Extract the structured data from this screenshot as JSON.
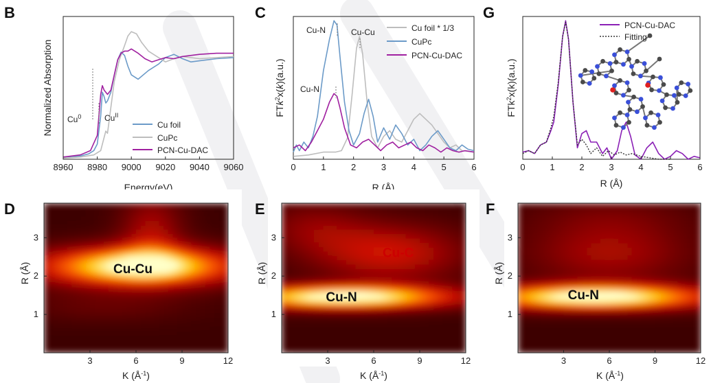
{
  "colors": {
    "cu_foil": "#6b9ac8",
    "cupc": "#bdbdbd",
    "pcn": "#a020a0",
    "pcn_g": "#8a1fb5",
    "fit": "#333333"
  },
  "chart_data": [
    {
      "id": "B",
      "panel_letter": "B",
      "type": "line",
      "xlabel": "Energy(eV)",
      "ylabel": "Normalized Absorption",
      "xlim": [
        8960,
        9060
      ],
      "ylim": [
        0,
        1.32
      ],
      "xticks": [
        "8960",
        "8980",
        "9000",
        "9020",
        "9040",
        "9060"
      ],
      "legend": [
        "Cu foil",
        "CuPc",
        "PCN-Cu-DAC"
      ],
      "legend_position": "lower-right",
      "annotations": [
        {
          "base": "Cu",
          "sup": "0"
        },
        {
          "base": "Cu",
          "sup": "II"
        }
      ],
      "series": [
        {
          "name": "Cu foil",
          "color": "#6b9ac8",
          "x": [
            8960,
            8970,
            8975,
            8978,
            8980,
            8982,
            8983,
            8984,
            8985,
            8986,
            8988,
            8990,
            8992,
            8994,
            8996,
            8998,
            9000,
            9004,
            9010,
            9016,
            9020,
            9025,
            9030,
            9035,
            9040,
            9050,
            9060
          ],
          "y": [
            0.02,
            0.03,
            0.05,
            0.08,
            0.14,
            0.4,
            0.62,
            0.58,
            0.52,
            0.54,
            0.62,
            0.78,
            0.92,
            0.99,
            0.96,
            0.86,
            0.78,
            0.74,
            0.82,
            0.88,
            0.94,
            0.97,
            0.93,
            0.9,
            0.91,
            0.93,
            0.94
          ]
        },
        {
          "name": "CuPc",
          "color": "#bdbdbd",
          "x": [
            8960,
            8970,
            8978,
            8982,
            8984,
            8985,
            8986,
            8988,
            8990,
            8993,
            8996,
            8998,
            9000,
            9003,
            9006,
            9010,
            9016,
            9020,
            9025,
            9030,
            9035,
            9040,
            9050,
            9060
          ],
          "y": [
            0.01,
            0.02,
            0.04,
            0.08,
            0.2,
            0.26,
            0.24,
            0.48,
            0.72,
            0.92,
            1.05,
            1.14,
            1.18,
            1.16,
            1.08,
            1.0,
            0.94,
            0.9,
            0.93,
            0.95,
            0.94,
            0.93,
            0.94,
            0.95
          ]
        },
        {
          "name": "PCN-Cu-DAC",
          "color": "#a020a0",
          "x": [
            8960,
            8970,
            8976,
            8980,
            8982,
            8983,
            8984,
            8986,
            8988,
            8990,
            8992,
            8994,
            8996,
            8998,
            9000,
            9004,
            9008,
            9012,
            9016,
            9020,
            9025,
            9030,
            9040,
            9050,
            9060
          ],
          "y": [
            0.02,
            0.04,
            0.08,
            0.22,
            0.6,
            0.68,
            0.64,
            0.6,
            0.64,
            0.78,
            0.92,
            0.98,
            1.0,
            1.0,
            1.02,
            0.98,
            0.93,
            0.9,
            0.92,
            0.94,
            0.93,
            0.95,
            0.97,
            0.98,
            0.98
          ]
        }
      ]
    },
    {
      "id": "C",
      "panel_letter": "C",
      "type": "line",
      "xlabel": "R (Å)",
      "ylabel_parts": [
        "FT",
        "k",
        "2",
        "x(",
        "k",
        ")(a.u.)"
      ],
      "xlim": [
        0,
        6
      ],
      "ylim": [
        0,
        1.0
      ],
      "xticks": [
        "0",
        "1",
        "2",
        "3",
        "4",
        "5",
        "6"
      ],
      "legend": [
        "Cu foil * 1/3",
        "CuPc",
        "PCN-Cu-DAC"
      ],
      "legend_position": "top-right",
      "annotations": [
        "Cu-N",
        "Cu-Cu",
        "Cu-N"
      ],
      "series": [
        {
          "name": "Cu foil * 1/3",
          "color": "#bdbdbd",
          "x": [
            0,
            0.5,
            1.0,
            1.4,
            1.6,
            1.8,
            1.95,
            2.1,
            2.2,
            2.3,
            2.45,
            2.6,
            2.8,
            3.0,
            3.2,
            3.4,
            3.6,
            3.8,
            4.0,
            4.2,
            4.4,
            4.6,
            4.8,
            5.0,
            5.2,
            5.4,
            5.6,
            6.0
          ],
          "y": [
            0.02,
            0.03,
            0.05,
            0.05,
            0.06,
            0.15,
            0.45,
            0.78,
            0.86,
            0.74,
            0.4,
            0.16,
            0.08,
            0.16,
            0.2,
            0.14,
            0.12,
            0.2,
            0.28,
            0.32,
            0.28,
            0.24,
            0.18,
            0.12,
            0.08,
            0.1,
            0.06,
            0.05
          ]
        },
        {
          "name": "CuPc",
          "color": "#6b9ac8",
          "x": [
            0,
            0.1,
            0.2,
            0.35,
            0.5,
            0.65,
            0.8,
            1.0,
            1.2,
            1.35,
            1.45,
            1.55,
            1.7,
            1.85,
            2.0,
            2.2,
            2.35,
            2.5,
            2.65,
            2.8,
            3.0,
            3.2,
            3.4,
            3.6,
            3.8,
            4.0,
            4.2,
            4.4,
            4.6,
            4.8,
            5.0,
            5.2,
            5.4,
            5.6,
            5.8,
            6.0
          ],
          "y": [
            0.05,
            0.1,
            0.06,
            0.12,
            0.08,
            0.16,
            0.3,
            0.62,
            0.84,
            0.97,
            0.94,
            0.72,
            0.4,
            0.2,
            0.1,
            0.18,
            0.32,
            0.42,
            0.3,
            0.12,
            0.22,
            0.14,
            0.24,
            0.18,
            0.1,
            0.14,
            0.06,
            0.1,
            0.16,
            0.2,
            0.14,
            0.08,
            0.06,
            0.1,
            0.07,
            0.06
          ]
        },
        {
          "name": "PCN-Cu-DAC",
          "color": "#a020a0",
          "x": [
            0,
            0.2,
            0.4,
            0.6,
            0.8,
            1.0,
            1.2,
            1.35,
            1.45,
            1.55,
            1.7,
            1.9,
            2.1,
            2.3,
            2.5,
            2.7,
            2.9,
            3.1,
            3.3,
            3.5,
            3.7,
            3.9,
            4.1,
            4.3,
            4.5,
            4.7,
            4.9,
            5.1,
            5.3,
            5.5,
            5.7,
            6.0
          ],
          "y": [
            0.08,
            0.1,
            0.06,
            0.12,
            0.2,
            0.28,
            0.4,
            0.46,
            0.44,
            0.36,
            0.22,
            0.1,
            0.08,
            0.12,
            0.14,
            0.1,
            0.06,
            0.1,
            0.12,
            0.08,
            0.1,
            0.12,
            0.08,
            0.06,
            0.1,
            0.08,
            0.05,
            0.08,
            0.06,
            0.05,
            0.06,
            0.05
          ]
        }
      ]
    },
    {
      "id": "G",
      "panel_letter": "G",
      "type": "line",
      "xlabel": "R (Å)",
      "ylabel_parts": [
        "FTk",
        "2",
        "x(k)(a.u.)"
      ],
      "xlim": [
        0,
        6
      ],
      "ylim": [
        0,
        1.0
      ],
      "xticks": [
        "0",
        "1",
        "2",
        "3",
        "4",
        "5",
        "6"
      ],
      "legend": [
        "PCN-Cu-DAC",
        "Fitting"
      ],
      "legend_position": "top-right",
      "series": [
        {
          "name": "PCN-Cu-DAC",
          "color": "#8a1fb5",
          "x": [
            0,
            0.2,
            0.4,
            0.6,
            0.8,
            0.95,
            1.05,
            1.2,
            1.35,
            1.45,
            1.55,
            1.7,
            1.85,
            2.0,
            2.15,
            2.3,
            2.5,
            2.7,
            2.85,
            3.0,
            3.2,
            3.35,
            3.5,
            3.65,
            3.8,
            4.0,
            4.2,
            4.4,
            4.6,
            4.8,
            5.0,
            5.2,
            5.4,
            5.6,
            5.8,
            6.0
          ],
          "y": [
            0.05,
            0.06,
            0.04,
            0.1,
            0.12,
            0.2,
            0.26,
            0.52,
            0.86,
            0.97,
            0.84,
            0.4,
            0.08,
            0.18,
            0.2,
            0.12,
            0.12,
            0.04,
            0.08,
            0.0,
            0.06,
            0.2,
            0.26,
            0.16,
            0.03,
            0.0,
            0.08,
            0.12,
            0.04,
            0.0,
            0.02,
            0.06,
            0.04,
            0.0,
            0.02,
            0.01
          ]
        },
        {
          "name": "Fitting",
          "color": "#333333",
          "x": [
            0,
            0.2,
            0.4,
            0.6,
            0.8,
            0.95,
            1.05,
            1.2,
            1.35,
            1.45,
            1.55,
            1.7,
            1.85,
            2.0,
            2.15,
            2.3,
            2.5,
            2.7,
            2.9,
            3.1,
            3.3,
            3.5,
            3.7,
            4.0,
            4.3,
            4.6,
            5.0
          ],
          "y": [
            0.04,
            0.06,
            0.04,
            0.1,
            0.12,
            0.22,
            0.3,
            0.54,
            0.86,
            0.96,
            0.84,
            0.4,
            0.1,
            0.14,
            0.1,
            0.04,
            0.08,
            0.02,
            0.06,
            0.03,
            0.05,
            0.03,
            0.04,
            0.02,
            0.01,
            0.0,
            0.0
          ]
        }
      ]
    },
    {
      "id": "D",
      "panel_letter": "D",
      "type": "heatmap",
      "xlabel_parts": [
        "K (Å",
        "-1",
        ")"
      ],
      "ylabel": "R (Å)",
      "xlim": [
        0,
        12
      ],
      "ylim": [
        0,
        3.9
      ],
      "xticks": [
        {
          "v": 3,
          "l": "3"
        },
        {
          "v": 6,
          "l": "6"
        },
        {
          "v": 9,
          "l": "9"
        },
        {
          "v": 12,
          "l": "12"
        }
      ],
      "yticks": [
        {
          "v": 1,
          "l": "1"
        },
        {
          "v": 2,
          "l": "2"
        },
        {
          "v": 3,
          "l": "3"
        }
      ],
      "peak_label": "Cu-Cu",
      "peak_label_k": 5.8,
      "peak_label_r": 2.18,
      "peak_label_color": "#111111",
      "peaks": [
        {
          "k": 6.2,
          "r": 2.25,
          "amp": 1.0,
          "sk": 4.6,
          "sr": 0.36
        },
        {
          "k": 7.0,
          "r": 3.2,
          "amp": 0.3,
          "sk": 1.5,
          "sr": 0.7
        },
        {
          "k": 4.0,
          "r": 1.2,
          "amp": 0.12,
          "sk": 4.0,
          "sr": 0.3
        }
      ]
    },
    {
      "id": "E",
      "panel_letter": "E",
      "type": "heatmap",
      "xlabel_parts": [
        "K (Å",
        "-1",
        ")"
      ],
      "ylabel": "R (Å)",
      "xlim": [
        0,
        12
      ],
      "ylim": [
        0,
        3.9
      ],
      "xticks": [
        {
          "v": 3,
          "l": "3"
        },
        {
          "v": 6,
          "l": "6"
        },
        {
          "v": 9,
          "l": "9"
        },
        {
          "v": 12,
          "l": "12"
        }
      ],
      "yticks": [
        {
          "v": 1,
          "l": "1"
        },
        {
          "v": 2,
          "l": "2"
        },
        {
          "v": 3,
          "l": "3"
        }
      ],
      "peak_label": "Cu-N",
      "peak_label_k": 3.9,
      "peak_label_r": 1.45,
      "peak_label_color": "#111111",
      "second_label": "Cu-C",
      "second_label_k": 7.6,
      "second_label_r": 2.6,
      "second_label_color": "#cc0000",
      "peaks": [
        {
          "k": 4.0,
          "r": 1.45,
          "amp": 1.0,
          "sk": 5.2,
          "sr": 0.22
        },
        {
          "k": 7.0,
          "r": 2.6,
          "amp": 0.4,
          "sk": 3.6,
          "sr": 0.55
        },
        {
          "k": 2.0,
          "r": 3.3,
          "amp": 0.2,
          "sk": 2.5,
          "sr": 0.5
        }
      ]
    },
    {
      "id": "F",
      "panel_letter": "F",
      "type": "heatmap",
      "xlabel_parts": [
        "K (Å",
        "-1",
        ")"
      ],
      "ylabel": "R (Å)",
      "xlim": [
        0,
        12
      ],
      "ylim": [
        0,
        3.9
      ],
      "xticks": [
        {
          "v": 3,
          "l": "3"
        },
        {
          "v": 6,
          "l": "6"
        },
        {
          "v": 9,
          "l": "9"
        },
        {
          "v": 12,
          "l": "12"
        }
      ],
      "yticks": [
        {
          "v": 1,
          "l": "1"
        },
        {
          "v": 2,
          "l": "2"
        },
        {
          "v": 3,
          "l": "3"
        }
      ],
      "peak_label": "Cu-N",
      "peak_label_k": 4.3,
      "peak_label_r": 1.5,
      "peak_label_color": "#111111",
      "peaks": [
        {
          "k": 5.0,
          "r": 1.45,
          "amp": 1.0,
          "sk": 5.5,
          "sr": 0.23
        },
        {
          "k": 6.0,
          "r": 2.6,
          "amp": 0.3,
          "sk": 4.0,
          "sr": 0.6
        },
        {
          "k": 6.0,
          "r": 3.6,
          "amp": 0.12,
          "sk": 4.0,
          "sr": 0.4
        }
      ]
    }
  ]
}
